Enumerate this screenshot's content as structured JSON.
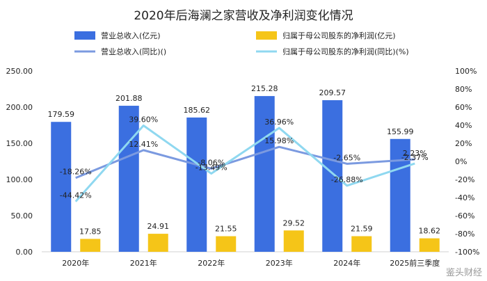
{
  "chart_data": {
    "type": "bar",
    "title": "2020年后海澜之家营收及净利润变化情况",
    "categories": [
      "2020年",
      "2021年",
      "2022年",
      "2023年",
      "2024年",
      "2025前三季度"
    ],
    "left_axis": {
      "min": 0,
      "max": 250,
      "ticks": [
        "0.00",
        "50.00",
        "100.00",
        "150.00",
        "200.00",
        "250.00"
      ]
    },
    "right_axis": {
      "min": -100,
      "max": 100,
      "ticks": [
        "-100%",
        "-80%",
        "-60%",
        "-40%",
        "-20%",
        "0%",
        "20%",
        "40%",
        "60%",
        "80%",
        "100%"
      ]
    },
    "series": [
      {
        "name": "营业总收入(亿元)",
        "kind": "bar",
        "axis": "left",
        "color": "#3b6fe0",
        "values": [
          179.59,
          201.88,
          185.62,
          215.28,
          209.57,
          155.99
        ],
        "labels": [
          "179.59",
          "201.88",
          "185.62",
          "215.28",
          "209.57",
          "155.99"
        ]
      },
      {
        "name": "归属于母公司股东的净利润(亿元)",
        "kind": "bar",
        "axis": "left",
        "color": "#f5c518",
        "values": [
          17.85,
          24.91,
          21.55,
          29.52,
          21.59,
          18.62
        ],
        "labels": [
          "17.85",
          "24.91",
          "21.55",
          "29.52",
          "21.59",
          "18.62"
        ]
      },
      {
        "name": "营业总收入(同比)()",
        "kind": "line",
        "axis": "right",
        "color": "#7b9ae0",
        "values": [
          -18.26,
          12.41,
          -8.06,
          15.98,
          -2.65,
          2.23
        ],
        "labels": [
          "-18.26%",
          "12.41%",
          "-8.06%",
          "15.98%",
          "-2.65%",
          "2.23%"
        ]
      },
      {
        "name": "归属于母公司股东的净利润(同比)(%)",
        "kind": "line",
        "axis": "right",
        "color": "#8fd8f0",
        "values": [
          -44.42,
          39.6,
          -13.49,
          36.96,
          -26.88,
          -2.37
        ],
        "labels": [
          "-44.42%",
          "39.60%",
          "-13.49%",
          "36.96%",
          "-26.88%",
          "-2.37%"
        ]
      }
    ],
    "legend_position": "top"
  },
  "watermark": "鉴头财经"
}
